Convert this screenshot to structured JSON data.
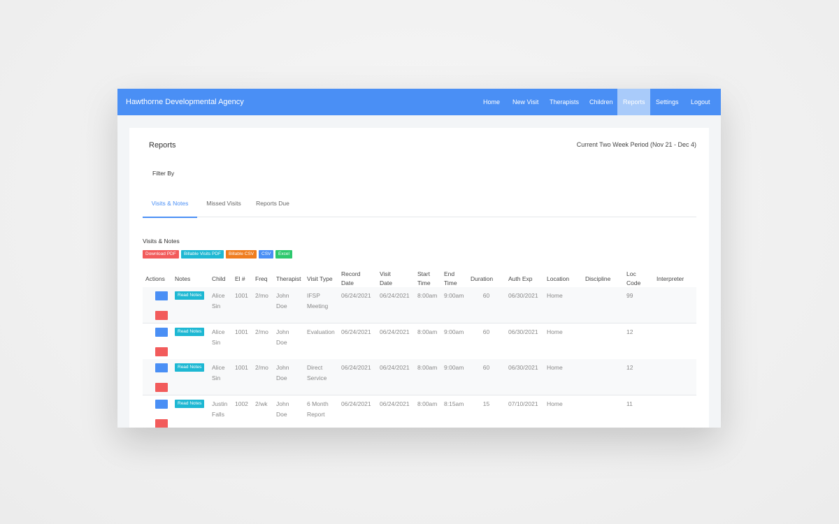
{
  "header": {
    "brand": "Hawthorne Developmental Agency",
    "nav": [
      "Home",
      "New Visit",
      "Therapists",
      "Children",
      "Reports",
      "Settings",
      "Logout"
    ],
    "active_nav": 4
  },
  "page": {
    "title": "Reports",
    "period": "Current Two Week Period (Nov 21 - Dec 4)",
    "filter_label": "Filter By",
    "tabs": [
      "Visits & Notes",
      "Missed Visits",
      "Reports Due"
    ],
    "active_tab": 0
  },
  "section": {
    "title": "Visits & Notes",
    "buttons": [
      {
        "label": "Download PDF",
        "color": "#f25b5b"
      },
      {
        "label": "Billable Visits PDF",
        "color": "#1eb8d3"
      },
      {
        "label": "Billable CSV",
        "color": "#ef7d1f"
      },
      {
        "label": "CSV",
        "color": "#4a8ff5"
      },
      {
        "label": "Excel",
        "color": "#2ec86e"
      }
    ]
  },
  "table": {
    "headers": {
      "actions": "Actions",
      "notes": "Notes",
      "child": "Child",
      "el": "El #",
      "freq": "Freq",
      "therapist": "Therapist",
      "visit_type": "Visit Type",
      "record_date": "Record Date",
      "visit_date": "Visit Date",
      "start_time": "Start Time",
      "end_time": "End Time",
      "duration": "Duration",
      "auth_exp": "Auth Exp",
      "location": "Location",
      "discipline": "Discipline",
      "loc_code": "Loc Code",
      "interpreter": "Interpreter"
    },
    "rows": [
      {
        "notes": "Read Notes",
        "child": "Alice Sin",
        "el": 1001,
        "freq": "2/mo",
        "therapist": "John Doe",
        "visit_type": "IFSP Meeting",
        "record_date": "06/24/2021",
        "visit_date": "06/24/2021",
        "start_time": "8:00am",
        "end_time": "9:00am",
        "duration": 60,
        "auth_exp": "06/30/2021",
        "location": "Home",
        "loc_code": 99
      },
      {
        "notes": "Read Notes",
        "child": "Alice Sin",
        "el": 1001,
        "freq": "2/mo",
        "therapist": "John Doe",
        "visit_type": "Evaluation",
        "record_date": "06/24/2021",
        "visit_date": "06/24/2021",
        "start_time": "8:00am",
        "end_time": "9:00am",
        "duration": 60,
        "auth_exp": "06/30/2021",
        "location": "Home",
        "loc_code": 12
      },
      {
        "notes": "Read Notes",
        "child": "Alice Sin",
        "el": 1001,
        "freq": "2/mo",
        "therapist": "John Doe",
        "visit_type": "Direct Service",
        "record_date": "06/24/2021",
        "visit_date": "06/24/2021",
        "start_time": "8:00am",
        "end_time": "9:00am",
        "duration": 60,
        "auth_exp": "06/30/2021",
        "location": "Home",
        "loc_code": 12
      },
      {
        "notes": "Read Notes",
        "child": "Justin Falls",
        "el": 1002,
        "freq": "2/wk",
        "therapist": "John Doe",
        "visit_type": "6 Month Report",
        "record_date": "06/24/2021",
        "visit_date": "06/24/2021",
        "start_time": "8:00am",
        "end_time": "8:15am",
        "duration": 15,
        "auth_exp": "07/10/2021",
        "location": "Home",
        "loc_code": 11
      }
    ]
  }
}
